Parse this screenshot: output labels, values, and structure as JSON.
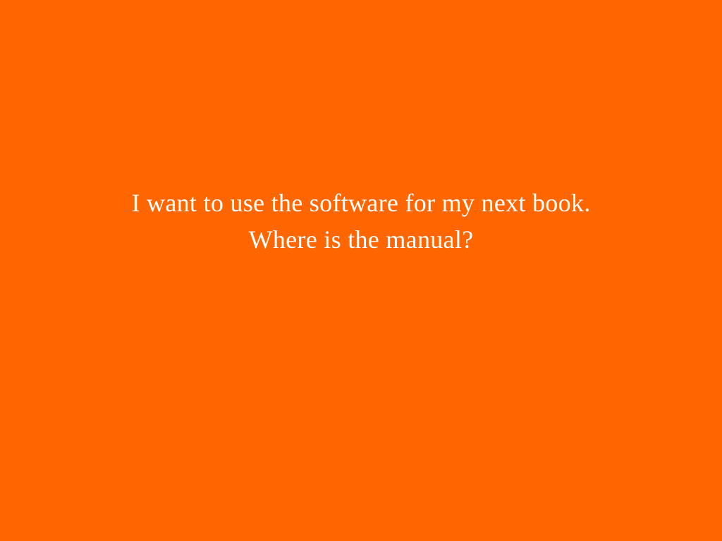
{
  "slide": {
    "background_color": "#ff6600",
    "text_color": "#ffffff",
    "lines": [
      "I want to use the software for my next book.",
      "Where is the manual?"
    ]
  }
}
